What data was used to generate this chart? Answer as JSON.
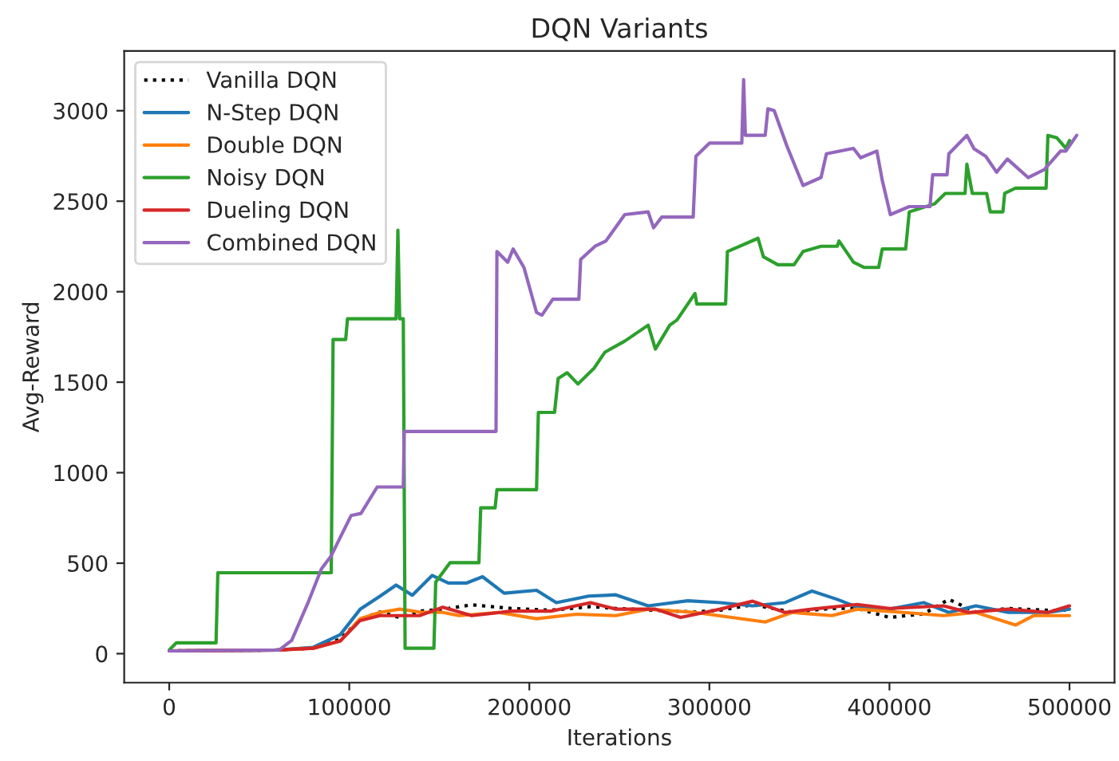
{
  "chart_data": {
    "type": "line",
    "title": "DQN Variants",
    "xlabel": "Iterations",
    "ylabel": "Avg-Reward",
    "xlim": [
      -25000,
      525000
    ],
    "ylim": [
      -160,
      3330
    ],
    "xticks": [
      0,
      100000,
      200000,
      300000,
      400000,
      500000
    ],
    "yticks": [
      0,
      500,
      1000,
      1500,
      2000,
      2500,
      3000
    ],
    "legend": "top left",
    "grid": false,
    "series": [
      {
        "name": "Vanilla DQN",
        "color": "#000000",
        "line_style": "dotted",
        "x": [
          0,
          60000,
          80000,
          95000,
          106000,
          117000,
          128000,
          139000,
          152000,
          168000,
          190000,
          212000,
          234000,
          248000,
          270000,
          292000,
          306000,
          324000,
          346000,
          368000,
          382000,
          400000,
          419000,
          433000,
          448000,
          466000,
          488000,
          500000
        ],
        "values": [
          15,
          20,
          30,
          80,
          190,
          230,
          200,
          235,
          245,
          270,
          250,
          240,
          260,
          250,
          240,
          230,
          240,
          270,
          230,
          250,
          250,
          200,
          220,
          300,
          230,
          250,
          240,
          240
        ]
      },
      {
        "name": "N-Step DQN",
        "color": "#1f77b4",
        "x": [
          0,
          60000,
          80000,
          95000,
          106000,
          117000,
          126000,
          135000,
          146000,
          155000,
          165000,
          174000,
          186000,
          204000,
          215000,
          233000,
          248000,
          266000,
          288000,
          306000,
          324000,
          342000,
          357000,
          371000,
          382000,
          400000,
          419000,
          433000,
          448000,
          466000,
          488000,
          500000
        ],
        "values": [
          15,
          20,
          35,
          105,
          245,
          317,
          379,
          323,
          432,
          390,
          390,
          425,
          334,
          350,
          282,
          318,
          325,
          264,
          292,
          282,
          264,
          282,
          346,
          300,
          257,
          246,
          282,
          228,
          264,
          228,
          228,
          246
        ]
      },
      {
        "name": "Double DQN",
        "color": "#ff7f0e",
        "x": [
          0,
          60000,
          80000,
          95000,
          106000,
          117000,
          128000,
          139000,
          152000,
          161000,
          183000,
          204000,
          226000,
          248000,
          266000,
          292000,
          331000,
          346000,
          368000,
          382000,
          408000,
          430000,
          448000,
          470000,
          480000,
          500000
        ],
        "values": [
          15,
          20,
          30,
          70,
          193,
          228,
          246,
          230,
          228,
          210,
          228,
          193,
          218,
          210,
          246,
          228,
          175,
          228,
          210,
          246,
          228,
          210,
          228,
          158,
          210,
          210
        ]
      },
      {
        "name": "Noisy DQN",
        "color": "#2ca02c",
        "x": [
          0,
          4000,
          26000,
          27000,
          90000,
          91000,
          98000,
          99000,
          126000,
          127000,
          128000,
          130000,
          131000,
          147000,
          148000,
          156000,
          172000,
          173000,
          181000,
          182000,
          204000,
          205000,
          214000,
          216000,
          221000,
          227000,
          236000,
          242000,
          253000,
          266000,
          270000,
          278000,
          282000,
          292000,
          293000,
          309000,
          310000,
          327000,
          330000,
          338000,
          347000,
          352000,
          362000,
          371000,
          372000,
          380000,
          386000,
          394000,
          396000,
          409000,
          411000,
          425000,
          431000,
          442000,
          443000,
          446000,
          454000,
          456000,
          463000,
          464000,
          470000,
          487000,
          488000,
          493000,
          498000,
          500000
        ],
        "values": [
          20,
          60,
          60,
          447,
          447,
          1736,
          1736,
          1850,
          1850,
          2340,
          1850,
          1850,
          30,
          30,
          395,
          503,
          503,
          806,
          806,
          906,
          906,
          1333,
          1333,
          1520,
          1552,
          1490,
          1578,
          1666,
          1727,
          1815,
          1683,
          1815,
          1844,
          1990,
          1932,
          1932,
          2222,
          2295,
          2193,
          2149,
          2149,
          2222,
          2251,
          2251,
          2280,
          2163,
          2134,
          2134,
          2236,
          2236,
          2441,
          2485,
          2543,
          2543,
          2704,
          2543,
          2543,
          2441,
          2441,
          2543,
          2572,
          2572,
          2864,
          2850,
          2792,
          2835
        ]
      },
      {
        "name": "Dueling DQN",
        "color": "#d62728",
        "x": [
          0,
          60000,
          80000,
          95000,
          106000,
          117000,
          128000,
          139000,
          152000,
          168000,
          190000,
          212000,
          234000,
          248000,
          270000,
          284000,
          306000,
          324000,
          342000,
          357000,
          382000,
          400000,
          430000,
          444000,
          466000,
          488000,
          500000
        ],
        "values": [
          15,
          20,
          30,
          70,
          183,
          210,
          210,
          210,
          257,
          210,
          235,
          235,
          282,
          246,
          246,
          200,
          246,
          290,
          228,
          246,
          272,
          250,
          264,
          228,
          246,
          228,
          264
        ]
      },
      {
        "name": "Combined DQN",
        "color": "#9467bd",
        "x": [
          0,
          61000,
          68000,
          77000,
          84500,
          90000,
          95000,
          101000,
          106500,
          115500,
          130000,
          130500,
          181500,
          182000,
          188000,
          191000,
          197000,
          204000,
          207000,
          213000,
          227500,
          228500,
          236500,
          242500,
          253000,
          266000,
          269000,
          273500,
          291000,
          292500,
          300000,
          318000,
          319000,
          320000,
          331000,
          332500,
          336000,
          343000,
          352000,
          362000,
          365000,
          380000,
          384000,
          393000,
          396000,
          400500,
          411000,
          422500,
          424000,
          432000,
          433000,
          443000,
          447000,
          453500,
          459500,
          465500,
          477000,
          486000,
          495000,
          498000,
          504000
        ],
        "values": [
          15,
          20,
          73,
          280,
          468,
          541,
          643,
          763,
          775,
          921,
          921,
          1228,
          1228,
          2222,
          2163,
          2236,
          2134,
          1885,
          1870,
          1958,
          1958,
          2178,
          2251,
          2280,
          2426,
          2441,
          2353,
          2412,
          2412,
          2748,
          2821,
          2821,
          3172,
          2864,
          2864,
          3011,
          3000,
          2806,
          2587,
          2631,
          2762,
          2792,
          2740,
          2777,
          2616,
          2426,
          2470,
          2470,
          2646,
          2646,
          2762,
          2864,
          2790,
          2748,
          2660,
          2733,
          2631,
          2675,
          2777,
          2777,
          2864
        ]
      }
    ]
  }
}
